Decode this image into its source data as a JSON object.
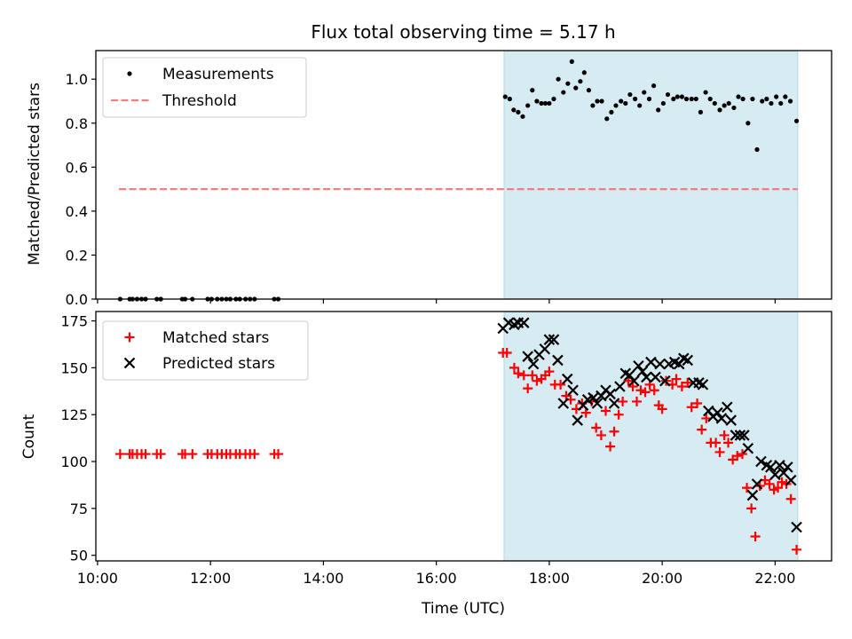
{
  "title": "Flux total observing time = 5.17 h",
  "colors": {
    "measurement": "#000000",
    "threshold": "#f08080",
    "matched": "#ff0000",
    "predicted": "#000000",
    "observing_window": "#add8e6",
    "axes": "#000000"
  },
  "chart_data": [
    {
      "type": "scatter",
      "panel": "top",
      "ylabel": "Matched/Predicted stars",
      "xlabel": "",
      "x_unit": "hours UTC",
      "xlim": [
        9.97,
        23.0
      ],
      "ylim": [
        0,
        1.13
      ],
      "x_ticks": [
        10,
        12,
        14,
        16,
        18,
        20,
        22
      ],
      "y_ticks": [
        0.0,
        0.2,
        0.4,
        0.6,
        0.8,
        1.0
      ],
      "y_tick_labels": [
        "0.0",
        "0.2",
        "0.4",
        "0.6",
        "0.8",
        "1.0"
      ],
      "grid": false,
      "legend_position": "upper-left",
      "legend": [
        "Measurements",
        "Threshold"
      ],
      "shaded_span": {
        "x_start": 17.2,
        "x_end": 22.4
      },
      "threshold": {
        "name": "Threshold",
        "y": 0.5,
        "x_start": 10.38,
        "x_end": 22.4
      },
      "series": [
        {
          "name": "Measurements",
          "marker": "dot",
          "x": [
            10.4,
            10.57,
            10.62,
            10.7,
            10.78,
            10.85,
            11.05,
            11.12,
            11.5,
            11.55,
            11.68,
            11.95,
            12.02,
            12.12,
            12.2,
            12.28,
            12.35,
            12.45,
            12.52,
            12.62,
            12.7,
            12.78,
            13.13,
            13.2,
            17.22,
            17.3,
            17.37,
            17.45,
            17.53,
            17.62,
            17.7,
            17.78,
            17.86,
            17.93,
            18.0,
            18.08,
            18.16,
            18.25,
            18.33,
            18.4,
            18.47,
            18.55,
            18.62,
            18.7,
            18.77,
            18.85,
            18.93,
            19.02,
            19.1,
            19.18,
            19.27,
            19.35,
            19.43,
            19.52,
            19.6,
            19.68,
            19.77,
            19.85,
            19.93,
            20.02,
            20.1,
            20.2,
            20.27,
            20.35,
            20.43,
            20.52,
            20.6,
            20.68,
            20.77,
            20.85,
            20.93,
            21.02,
            21.1,
            21.18,
            21.27,
            21.35,
            21.43,
            21.52,
            21.6,
            21.68,
            21.77,
            21.85,
            21.93,
            22.02,
            22.1,
            22.18,
            22.27,
            22.38
          ],
          "y": [
            0,
            0,
            0,
            0,
            0,
            0,
            0,
            0,
            0,
            0,
            0,
            0,
            0,
            0,
            0,
            0,
            0,
            0,
            0,
            0,
            0,
            0,
            0,
            0,
            0.92,
            0.91,
            0.86,
            0.85,
            0.83,
            0.88,
            0.95,
            0.9,
            0.89,
            0.89,
            0.89,
            0.91,
            1.0,
            0.94,
            0.98,
            1.08,
            0.96,
            0.99,
            1.03,
            0.95,
            0.88,
            0.9,
            0.9,
            0.82,
            0.85,
            0.88,
            0.9,
            0.89,
            0.93,
            0.91,
            0.88,
            0.94,
            0.91,
            0.97,
            0.86,
            0.89,
            0.93,
            0.91,
            0.92,
            0.92,
            0.91,
            0.91,
            0.91,
            0.85,
            0.94,
            0.91,
            0.89,
            0.86,
            0.88,
            0.89,
            0.87,
            0.92,
            0.91,
            0.8,
            0.91,
            0.68,
            0.9,
            0.91,
            0.89,
            0.92,
            0.89,
            0.92,
            0.9,
            0.81
          ]
        }
      ]
    },
    {
      "type": "scatter",
      "panel": "bottom",
      "ylabel": "Count",
      "xlabel": "Time (UTC)",
      "x_unit": "hours UTC",
      "xlim": [
        9.97,
        23.0
      ],
      "ylim": [
        47,
        180
      ],
      "x_ticks": [
        10,
        12,
        14,
        16,
        18,
        20,
        22
      ],
      "x_tick_labels": [
        "10:00",
        "12:00",
        "14:00",
        "16:00",
        "18:00",
        "20:00",
        "22:00"
      ],
      "y_ticks": [
        50,
        75,
        100,
        125,
        150,
        175
      ],
      "y_tick_labels": [
        "50",
        "75",
        "100",
        "125",
        "150",
        "175"
      ],
      "grid": false,
      "legend_position": "upper-left",
      "legend": [
        "Matched stars",
        "Predicted stars"
      ],
      "shaded_span": {
        "x_start": 17.2,
        "x_end": 22.4
      },
      "series": [
        {
          "name": "Matched stars",
          "marker": "plus",
          "x": [
            10.4,
            10.57,
            10.62,
            10.7,
            10.78,
            10.85,
            11.05,
            11.12,
            11.5,
            11.55,
            11.68,
            11.95,
            12.02,
            12.12,
            12.2,
            12.28,
            12.35,
            12.45,
            12.52,
            12.62,
            12.7,
            12.78,
            13.13,
            13.2,
            17.18,
            17.25,
            17.38,
            17.45,
            17.55,
            17.62,
            17.7,
            17.78,
            17.86,
            17.93,
            18.0,
            18.1,
            18.2,
            18.3,
            18.38,
            18.48,
            18.58,
            18.65,
            18.75,
            18.83,
            18.92,
            19.0,
            19.08,
            19.15,
            19.23,
            19.3,
            19.4,
            19.48,
            19.55,
            19.62,
            19.7,
            19.78,
            19.86,
            19.94,
            20.0,
            20.07,
            20.18,
            20.25,
            20.35,
            20.45,
            20.52,
            20.62,
            20.7,
            20.78,
            20.86,
            20.95,
            21.02,
            21.1,
            21.17,
            21.25,
            21.33,
            21.42,
            21.5,
            21.58,
            21.65,
            21.73,
            21.82,
            21.9,
            21.98,
            22.05,
            22.12,
            22.2,
            22.28,
            22.38
          ],
          "y": [
            104,
            104,
            104,
            104,
            104,
            104,
            104,
            104,
            104,
            104,
            104,
            104,
            104,
            104,
            104,
            104,
            104,
            104,
            104,
            104,
            104,
            104,
            104,
            104,
            158,
            158,
            150,
            147,
            146,
            139,
            146,
            143,
            144,
            146,
            148,
            141,
            141,
            135,
            133,
            128,
            131,
            126,
            132,
            118,
            114,
            127,
            108,
            116,
            125,
            132,
            143,
            140,
            132,
            138,
            137,
            141,
            138,
            130,
            128,
            143,
            141,
            144,
            140,
            142,
            129,
            131,
            117,
            123,
            110,
            110,
            105,
            114,
            110,
            101,
            103,
            104,
            86,
            75,
            60,
            87,
            90,
            88,
            85,
            86,
            89,
            88,
            80,
            53
          ]
        },
        {
          "name": "Predicted stars",
          "marker": "x",
          "x": [
            17.18,
            17.28,
            17.38,
            17.45,
            17.55,
            17.62,
            17.72,
            17.82,
            17.92,
            18.0,
            18.08,
            18.15,
            18.25,
            18.32,
            18.42,
            18.5,
            18.6,
            18.68,
            18.78,
            18.85,
            18.92,
            19.0,
            19.08,
            19.15,
            19.25,
            19.35,
            19.42,
            19.5,
            19.58,
            19.65,
            19.72,
            19.8,
            19.88,
            19.96,
            20.05,
            20.12,
            20.22,
            20.3,
            20.38,
            20.45,
            20.55,
            20.65,
            20.72,
            20.82,
            20.9,
            20.98,
            21.05,
            21.15,
            21.22,
            21.3,
            21.38,
            21.45,
            21.52,
            21.6,
            21.68,
            21.75,
            21.85,
            21.92,
            22.0,
            22.08,
            22.15,
            22.22,
            22.28,
            22.38
          ],
          "y": [
            171,
            174,
            173,
            174,
            174,
            156,
            152,
            157,
            160,
            165,
            165,
            154,
            131,
            144,
            138,
            122,
            130,
            133,
            134,
            131,
            135,
            138,
            136,
            131,
            140,
            147,
            146,
            143,
            151,
            148,
            145,
            153,
            145,
            152,
            143,
            152,
            153,
            152,
            155,
            154,
            142,
            142,
            141,
            127,
            124,
            126,
            123,
            129,
            122,
            114,
            114,
            114,
            107,
            82,
            88,
            100,
            98,
            97,
            93,
            98,
            94,
            97,
            90,
            65
          ]
        }
      ]
    }
  ]
}
